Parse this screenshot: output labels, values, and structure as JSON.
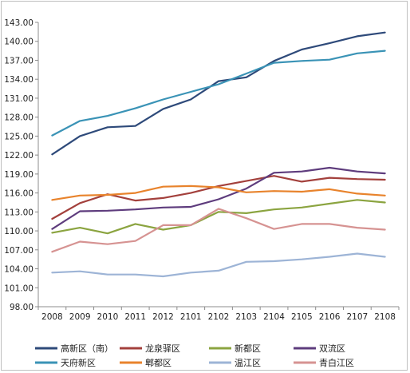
{
  "chart_data": {
    "type": "line",
    "x": [
      "2008",
      "2009",
      "2010",
      "2011",
      "2012",
      "2101",
      "2102",
      "2103",
      "2104",
      "2105",
      "2106",
      "2107",
      "2108"
    ],
    "x_tick_labels": [
      "2008",
      "2009",
      "2010",
      "2011",
      "2012",
      "2101",
      "2102",
      "2103",
      "2104",
      "2105",
      "2106",
      "2107",
      "2108"
    ],
    "ylim": [
      98.0,
      143.0
    ],
    "y_ticks": [
      "98.00",
      "101.00",
      "104.00",
      "107.00",
      "110.00",
      "113.00",
      "116.00",
      "119.00",
      "122.00",
      "125.00",
      "128.00",
      "131.00",
      "134.00",
      "137.00",
      "140.00",
      "143.00"
    ],
    "grid": false,
    "legend_position": "bottom",
    "series": [
      {
        "name": "高新区（南）",
        "color": "#2e4a7a",
        "values": [
          122.1,
          125.0,
          126.4,
          126.6,
          129.3,
          130.8,
          133.7,
          134.3,
          136.9,
          138.7,
          139.7,
          140.8,
          141.4
        ]
      },
      {
        "name": "龙泉驿区",
        "color": "#a3403c",
        "values": [
          111.9,
          114.4,
          115.8,
          114.8,
          115.2,
          116.0,
          117.1,
          117.9,
          118.7,
          117.8,
          118.4,
          118.2,
          118.1
        ]
      },
      {
        "name": "新都区",
        "color": "#8ba440",
        "values": [
          109.7,
          110.5,
          109.6,
          111.1,
          110.2,
          110.9,
          113.0,
          112.8,
          113.4,
          113.7,
          114.3,
          114.9,
          114.5
        ]
      },
      {
        "name": "双流区",
        "color": "#5e3c7d",
        "values": [
          110.3,
          113.1,
          113.2,
          113.4,
          113.7,
          113.8,
          115.0,
          116.7,
          119.2,
          119.4,
          120.0,
          119.4,
          119.1
        ]
      },
      {
        "name": "天府新区",
        "color": "#3a93b6",
        "values": [
          125.1,
          127.4,
          128.2,
          129.4,
          130.8,
          132.0,
          133.2,
          134.9,
          136.6,
          136.9,
          137.1,
          138.1,
          138.5
        ]
      },
      {
        "name": "郫都区",
        "color": "#e8832c",
        "values": [
          114.9,
          115.6,
          115.7,
          116.0,
          117.0,
          117.1,
          116.9,
          116.1,
          116.3,
          116.2,
          116.6,
          115.9,
          115.6
        ]
      },
      {
        "name": "温江区",
        "color": "#9db4d6",
        "values": [
          103.4,
          103.6,
          103.1,
          103.1,
          102.8,
          103.4,
          103.7,
          105.1,
          105.2,
          105.5,
          105.9,
          106.4,
          105.9
        ]
      },
      {
        "name": "青白江区",
        "color": "#d69392",
        "values": [
          106.7,
          108.3,
          107.9,
          108.4,
          110.9,
          110.9,
          113.5,
          112.0,
          110.3,
          111.1,
          111.1,
          110.5,
          110.2
        ]
      }
    ]
  }
}
